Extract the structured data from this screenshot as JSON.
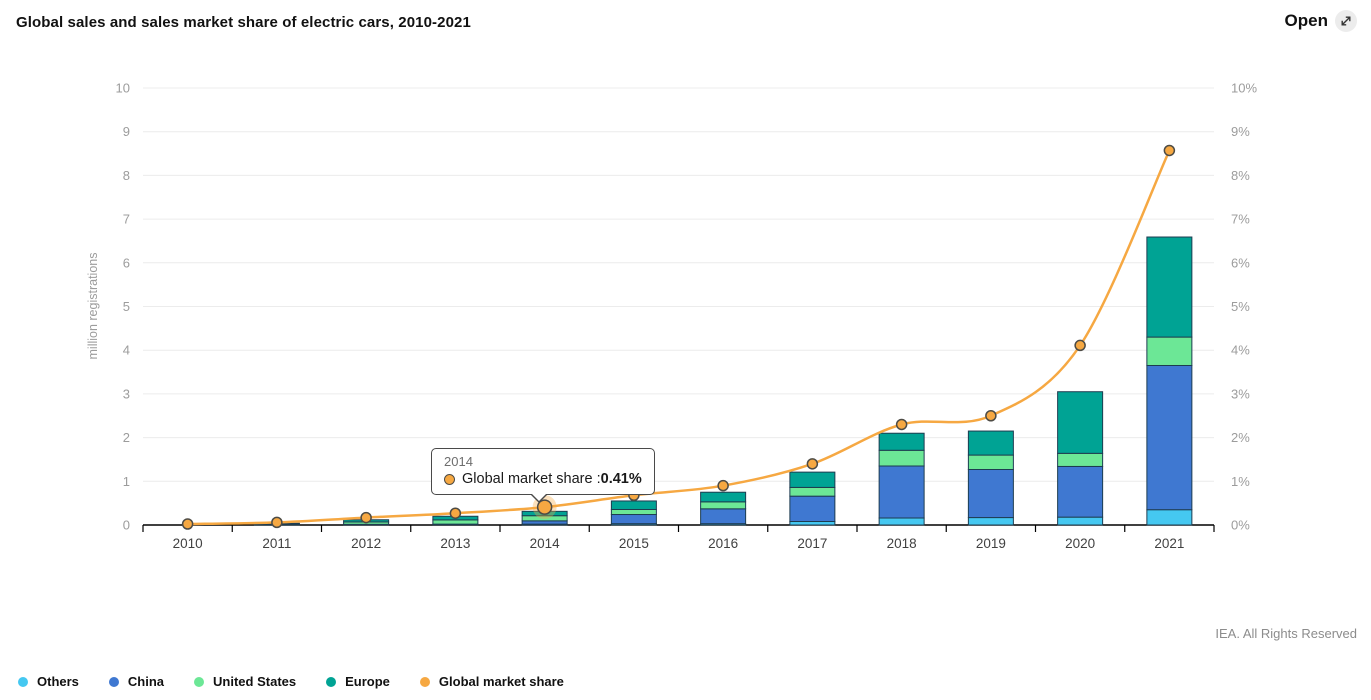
{
  "header": {
    "title": "Global sales and sales market share of electric cars, 2010-2021",
    "open_label": "Open"
  },
  "tooltip": {
    "year": "2014",
    "label": "Global market share : ",
    "value": "0.41%"
  },
  "footer": {
    "copyright": "IEA. All Rights Reserved"
  },
  "chart_data": {
    "type": "bar",
    "subtype": "stacked-bar-with-line",
    "title": "Global sales and sales market share of electric cars, 2010-2021",
    "categories": [
      "2010",
      "2011",
      "2012",
      "2013",
      "2014",
      "2015",
      "2016",
      "2017",
      "2018",
      "2019",
      "2020",
      "2021"
    ],
    "series": [
      {
        "name": "Others",
        "color": "#45c8f1",
        "values": [
          0.001,
          0.002,
          0.003,
          0.005,
          0.02,
          0.03,
          0.03,
          0.08,
          0.16,
          0.17,
          0.18,
          0.35
        ]
      },
      {
        "name": "China",
        "color": "#3f78d1",
        "values": [
          0.001,
          0.006,
          0.012,
          0.015,
          0.075,
          0.21,
          0.34,
          0.58,
          1.19,
          1.1,
          1.16,
          3.3
        ]
      },
      {
        "name": "United States",
        "color": "#6ce796",
        "values": [
          0.002,
          0.018,
          0.055,
          0.097,
          0.118,
          0.115,
          0.16,
          0.2,
          0.36,
          0.33,
          0.3,
          0.65
        ]
      },
      {
        "name": "Europe",
        "color": "#00a394",
        "values": [
          0.003,
          0.014,
          0.05,
          0.083,
          0.1,
          0.195,
          0.22,
          0.35,
          0.39,
          0.55,
          1.41,
          2.29
        ]
      }
    ],
    "line_series": {
      "name": "Global market share",
      "color": "#f6a842",
      "marker_stroke": "#4d4b45",
      "values_pct": [
        0.01,
        0.06,
        0.17,
        0.27,
        0.41,
        0.68,
        0.9,
        1.4,
        2.3,
        2.5,
        4.11,
        8.57
      ]
    },
    "highlight": {
      "category": "2014",
      "series": "Global market share",
      "value_pct": 0.41
    },
    "ylabel_left": "million registrations",
    "y_left": {
      "min": 0,
      "max": 10,
      "ticks": [
        "0",
        "1",
        "2",
        "3",
        "4",
        "5",
        "6",
        "7",
        "8",
        "9",
        "10"
      ]
    },
    "y_right": {
      "min": 0,
      "max": 10,
      "ticks": [
        "0%",
        "1%",
        "2%",
        "3%",
        "4%",
        "5%",
        "6%",
        "7%",
        "8%",
        "9%",
        "10%"
      ]
    },
    "grid": true,
    "legend_position": "bottom"
  }
}
